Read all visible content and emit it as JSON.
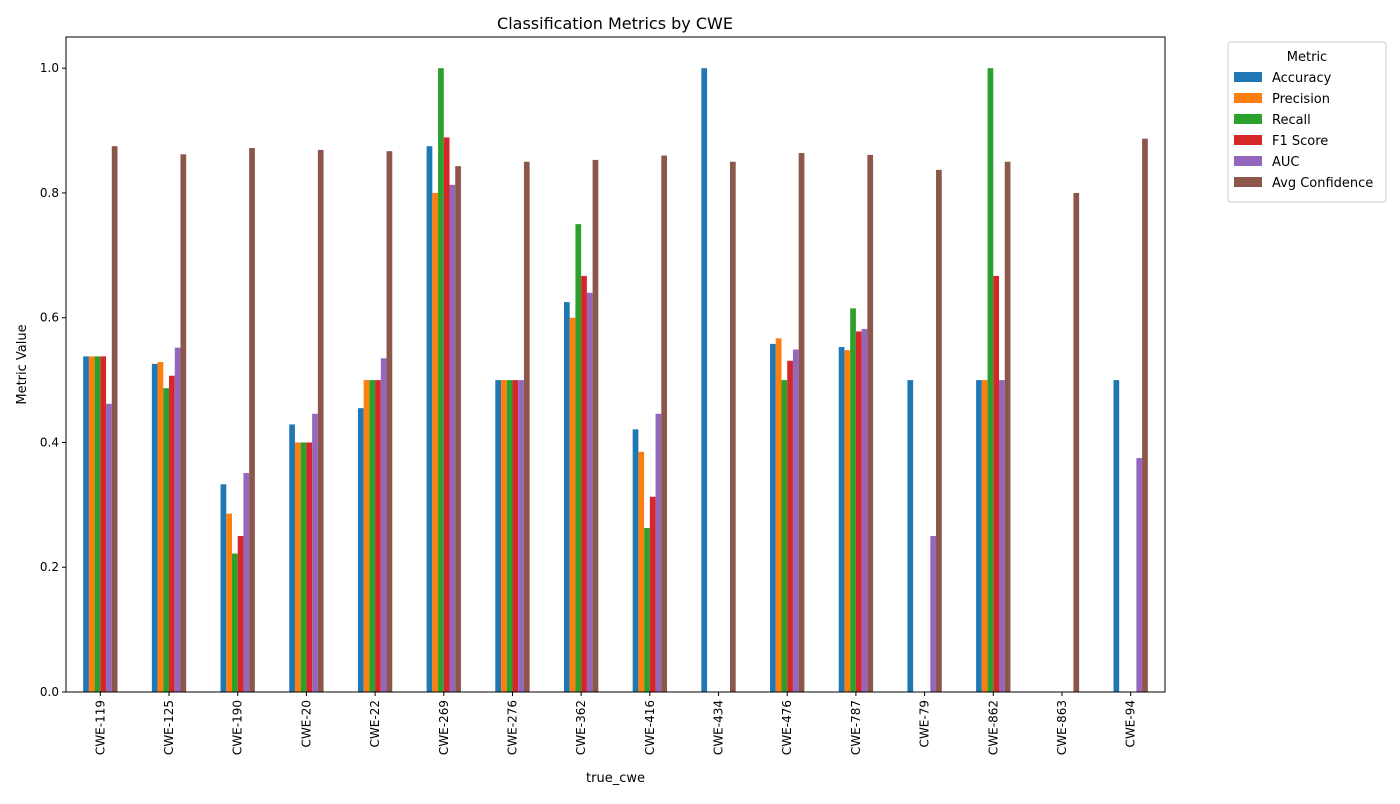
{
  "chart_data": {
    "type": "bar",
    "title": "Classification Metrics by CWE",
    "xlabel": "true_cwe",
    "ylabel": "Metric Value",
    "ylim": [
      0,
      1.05
    ],
    "yticks": [
      0.0,
      0.2,
      0.4,
      0.6,
      0.8,
      1.0
    ],
    "ytick_labels": [
      "0.0",
      "0.2",
      "0.4",
      "0.6",
      "0.8",
      "1.0"
    ],
    "grid": false,
    "legend_title": "Metric",
    "legend_position": "outside-top-right",
    "categories": [
      "CWE-119",
      "CWE-125",
      "CWE-190",
      "CWE-20",
      "CWE-22",
      "CWE-269",
      "CWE-276",
      "CWE-362",
      "CWE-416",
      "CWE-434",
      "CWE-476",
      "CWE-787",
      "CWE-79",
      "CWE-862",
      "CWE-863",
      "CWE-94"
    ],
    "series": [
      {
        "name": "Accuracy",
        "color": "#1f77b4",
        "values": [
          0.538,
          0.526,
          0.333,
          0.429,
          0.455,
          0.875,
          0.5,
          0.625,
          0.421,
          1.0,
          0.558,
          0.553,
          0.5,
          0.5,
          0.0,
          0.5
        ]
      },
      {
        "name": "Precision",
        "color": "#ff7f0e",
        "values": [
          0.538,
          0.529,
          0.286,
          0.4,
          0.5,
          0.8,
          0.5,
          0.6,
          0.385,
          0.0,
          0.567,
          0.548,
          0.0,
          0.5,
          0.0,
          0.0
        ]
      },
      {
        "name": "Recall",
        "color": "#2ca02c",
        "values": [
          0.538,
          0.487,
          0.222,
          0.4,
          0.5,
          1.0,
          0.5,
          0.75,
          0.263,
          0.0,
          0.5,
          0.615,
          0.0,
          1.0,
          0.0,
          0.0
        ]
      },
      {
        "name": "F1 Score",
        "color": "#d62728",
        "values": [
          0.538,
          0.507,
          0.25,
          0.4,
          0.5,
          0.889,
          0.5,
          0.667,
          0.313,
          0.0,
          0.531,
          0.578,
          0.0,
          0.667,
          0.0,
          0.0
        ]
      },
      {
        "name": "AUC",
        "color": "#9467bd",
        "values": [
          0.462,
          0.552,
          0.351,
          0.446,
          0.535,
          0.813,
          0.5,
          0.64,
          0.446,
          0.0,
          0.549,
          0.582,
          0.25,
          0.5,
          0.0,
          0.375
        ]
      },
      {
        "name": "Avg Confidence",
        "color": "#8c564b",
        "values": [
          0.875,
          0.862,
          0.872,
          0.869,
          0.867,
          0.843,
          0.85,
          0.853,
          0.86,
          0.85,
          0.864,
          0.861,
          0.837,
          0.85,
          0.8,
          0.887
        ]
      }
    ]
  }
}
